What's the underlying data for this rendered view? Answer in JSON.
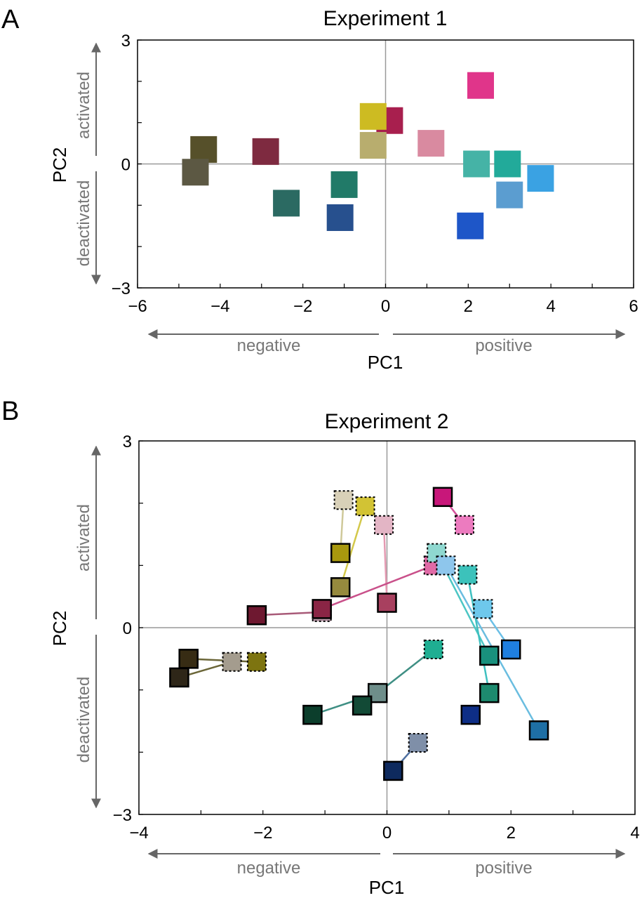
{
  "chart_data": [
    {
      "panel_label": "A",
      "type": "scatter",
      "title": "Experiment 1",
      "xlabel": "PC1",
      "ylabel": "PC2",
      "xlim": [
        -6,
        6
      ],
      "ylim": [
        -3,
        3
      ],
      "xticks": [
        -6,
        -4,
        -2,
        0,
        2,
        4,
        6
      ],
      "yticks": [
        -3,
        0,
        3
      ],
      "x_direction_labels": {
        "negative": "negative",
        "positive": "positive"
      },
      "y_direction_labels": {
        "positive": "activated",
        "negative": "deactivated"
      },
      "zero_lines": true,
      "points": [
        {
          "x": 2.3,
          "y": 1.9,
          "color": "#e0358a"
        },
        {
          "x": 0.1,
          "y": 1.05,
          "color": "#a81f4e"
        },
        {
          "x": -0.3,
          "y": 1.15,
          "color": "#cdbb22"
        },
        {
          "x": -0.3,
          "y": 0.45,
          "color": "#b8ad6e"
        },
        {
          "x": 1.1,
          "y": 0.5,
          "color": "#d98aa0"
        },
        {
          "x": -4.4,
          "y": 0.35,
          "color": "#56502a"
        },
        {
          "x": -4.6,
          "y": -0.2,
          "color": "#5c5843"
        },
        {
          "x": -2.9,
          "y": 0.3,
          "color": "#7e2a40"
        },
        {
          "x": 2.2,
          "y": 0.0,
          "color": "#45b3a6"
        },
        {
          "x": 2.95,
          "y": 0.0,
          "color": "#22aa9a"
        },
        {
          "x": 3.75,
          "y": -0.35,
          "color": "#3aa2e3"
        },
        {
          "x": 3.0,
          "y": -0.75,
          "color": "#5b9dd0"
        },
        {
          "x": 2.05,
          "y": -1.5,
          "color": "#1e56c8"
        },
        {
          "x": -1.0,
          "y": -0.5,
          "color": "#217a68"
        },
        {
          "x": -2.4,
          "y": -0.95,
          "color": "#2b6a62"
        },
        {
          "x": -1.1,
          "y": -1.3,
          "color": "#27508e"
        }
      ]
    },
    {
      "panel_label": "B",
      "type": "scatter",
      "title": "Experiment 2",
      "xlabel": "PC1",
      "ylabel": "PC2",
      "xlim": [
        -4,
        4
      ],
      "ylim": [
        -3,
        3
      ],
      "xticks": [
        -4,
        -2,
        0,
        2,
        4
      ],
      "yticks": [
        -3,
        0,
        3
      ],
      "x_direction_labels": {
        "negative": "negative",
        "positive": "positive"
      },
      "y_direction_labels": {
        "positive": "activated",
        "negative": "deactivated"
      },
      "zero_lines": true,
      "paired_points": [
        {
          "from": {
            "x": -0.7,
            "y": 2.05
          },
          "to": {
            "x": -0.75,
            "y": 1.2
          },
          "from_color": "#d8d0b8",
          "to_color": "#a8980e",
          "line_color": "#cfc99a"
        },
        {
          "from": {
            "x": -0.35,
            "y": 1.95
          },
          "to": {
            "x": -0.75,
            "y": 0.65
          },
          "from_color": "#d2c334",
          "to_color": "#968a3e",
          "line_color": "#d3c84a"
        },
        {
          "from": {
            "x": -0.05,
            "y": 1.65
          },
          "to": {
            "x": 0.0,
            "y": 0.4
          },
          "from_color": "#e3b5c5",
          "to_color": "#a8405f",
          "line_color": "#e49ab2"
        },
        {
          "from": {
            "x": 1.25,
            "y": 1.65
          },
          "to": {
            "x": 0.9,
            "y": 2.1
          },
          "from_color": "#ec7bbf",
          "to_color": "#c8177a",
          "line_color": "#d5509b"
        },
        {
          "from": {
            "x": 0.75,
            "y": 1.0
          },
          "to": {
            "x": -1.05,
            "y": 0.3
          },
          "from_color": "#e06aa6",
          "to_color": "#8a2545",
          "line_color": "#c9508a"
        },
        {
          "from": {
            "x": -1.05,
            "y": 0.25
          },
          "to": {
            "x": -2.1,
            "y": 0.2
          },
          "from_color": "#b99aa8",
          "to_color": "#6e1830",
          "line_color": "#a85a78"
        },
        {
          "from": {
            "x": 0.8,
            "y": 1.2
          },
          "to": {
            "x": 1.65,
            "y": -0.45
          },
          "from_color": "#8fd8d0",
          "to_color": "#19907d",
          "line_color": "#4cc6c4"
        },
        {
          "from": {
            "x": 0.95,
            "y": 1.0
          },
          "to": {
            "x": 2.45,
            "y": -1.65
          },
          "from_color": "#8ec6ec",
          "to_color": "#1e6fa5",
          "line_color": "#6abde0"
        },
        {
          "from": {
            "x": 1.3,
            "y": 0.85
          },
          "to": {
            "x": 1.65,
            "y": -1.05
          },
          "from_color": "#3cc2bb",
          "to_color": "#1d8a6e",
          "line_color": "#3fc0c0"
        },
        {
          "from": {
            "x": 1.55,
            "y": 0.3
          },
          "to": {
            "x": 2.0,
            "y": -0.35
          },
          "from_color": "#6ec8ec",
          "to_color": "#1f7fdf",
          "line_color": "#6bbfe6"
        },
        {
          "from": {
            "x": 0.75,
            "y": -0.35
          },
          "to": {
            "x": -0.15,
            "y": -1.05
          },
          "from_color": "#1fae92",
          "to_color": "#6e8e8a",
          "line_color": "#3f8f84"
        },
        {
          "from": {
            "x": -0.15,
            "y": -1.05
          },
          "to": {
            "x": -1.2,
            "y": -1.4
          },
          "from_color": "#6e8e8a",
          "to_color": "#0c3e2c",
          "line_color": "#3f8f84"
        },
        {
          "from": {
            "x": -0.4,
            "y": -1.25
          },
          "to": {
            "x": -0.4,
            "y": -1.25
          },
          "from_color": "#124a36",
          "to_color": "#124a36",
          "line_color": "#124a36"
        },
        {
          "from": {
            "x": 0.5,
            "y": -1.85
          },
          "to": {
            "x": 0.1,
            "y": -2.3
          },
          "from_color": "#7f8fa8",
          "to_color": "#0e2a5e",
          "line_color": "#4e6fa0"
        },
        {
          "from": {
            "x": -2.1,
            "y": -0.55
          },
          "to": {
            "x": -3.2,
            "y": -0.5
          },
          "from_color": "#7d7410",
          "to_color": "#372c14",
          "line_color": "#6b6638"
        },
        {
          "from": {
            "x": -2.5,
            "y": -0.55
          },
          "to": {
            "x": -3.35,
            "y": -0.8
          },
          "from_color": "#a49c8e",
          "to_color": "#2e2618",
          "line_color": "#6b6638"
        },
        {
          "from": {
            "x": 1.35,
            "y": -1.4
          },
          "to": {
            "x": 1.35,
            "y": -1.4
          },
          "from_color": "#0e2e86",
          "to_color": "#0e2e86",
          "line_color": "#0e2e86"
        }
      ]
    }
  ]
}
